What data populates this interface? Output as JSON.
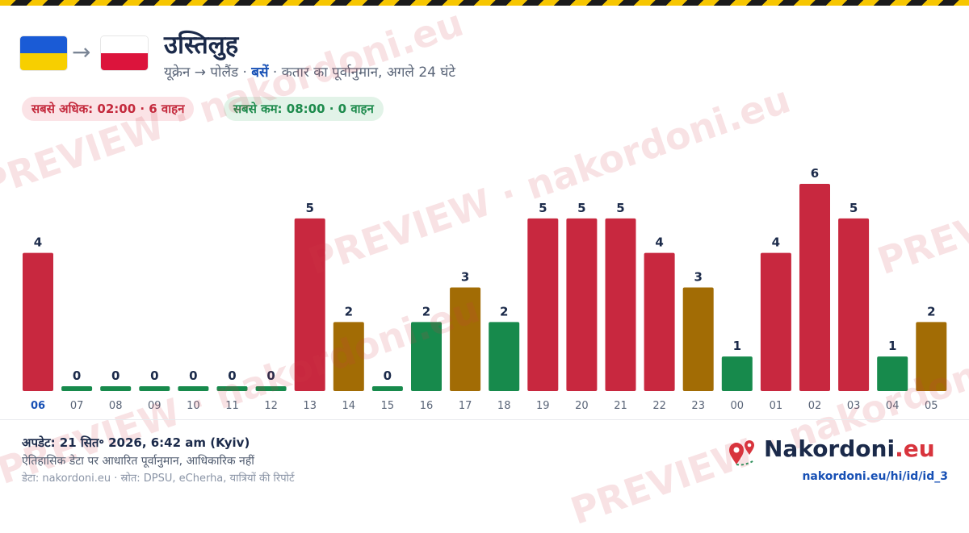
{
  "header": {
    "title": "उस्तिलुह",
    "subtitle_prefix": "यूक्रेन → पोलैंड ·",
    "subtitle_mode": "बसें",
    "subtitle_suffix": "· कतार का पूर्वानुमान, अगले 24 घंटे",
    "arrow": "→",
    "max_pill": "सबसे अधिक: 02:00 · 6 वाहन",
    "min_pill": "सबसे कम: 08:00 · 0 वाहन"
  },
  "flags": {
    "from_colors": [
      "#1a5bd6",
      "#f7cf00"
    ],
    "to_colors": [
      "#ffffff",
      "#dc143c"
    ]
  },
  "watermark": "PREVIEW · nakordoni.eu",
  "colors": {
    "high": "#c8283f",
    "mid": "#a26c05",
    "low": "#178a4c",
    "tick": "#5a6578",
    "tick_current": "#1750b5",
    "value_label": "#1b2a4a"
  },
  "chart_data": {
    "type": "bar",
    "categories": [
      "06",
      "07",
      "08",
      "09",
      "10",
      "11",
      "12",
      "13",
      "14",
      "15",
      "16",
      "17",
      "18",
      "19",
      "20",
      "21",
      "22",
      "23",
      "00",
      "01",
      "02",
      "03",
      "04",
      "05"
    ],
    "values": [
      4,
      0,
      0,
      0,
      0,
      0,
      0,
      5,
      2,
      0,
      2,
      3,
      2,
      5,
      5,
      5,
      4,
      3,
      1,
      4,
      6,
      5,
      1,
      2
    ],
    "levels": [
      "high",
      "low",
      "low",
      "low",
      "low",
      "low",
      "low",
      "high",
      "mid",
      "low",
      "low",
      "mid",
      "low",
      "high",
      "high",
      "high",
      "high",
      "mid",
      "low",
      "high",
      "high",
      "high",
      "low",
      "mid"
    ],
    "current_category": "06",
    "ylim": [
      0,
      6
    ],
    "title": "",
    "xlabel": "",
    "ylabel": "",
    "grid": false,
    "legend": "none"
  },
  "footer": {
    "updated": "अपडेट: 21 सित॰ 2026, 6:42 am (Kyiv)",
    "disclaimer": "ऐतिहासिक डेटा पर आधारित पूर्वानुमान, आधिकारिक नहीं",
    "source": "डेटा: nakordoni.eu · स्रोत: DPSU, eCherha, यात्रियों की रिपोर्ट",
    "brand_name": "Nakordoni",
    "brand_tld": ".eu",
    "url": "nakordoni.eu/hi/id/id_3"
  }
}
